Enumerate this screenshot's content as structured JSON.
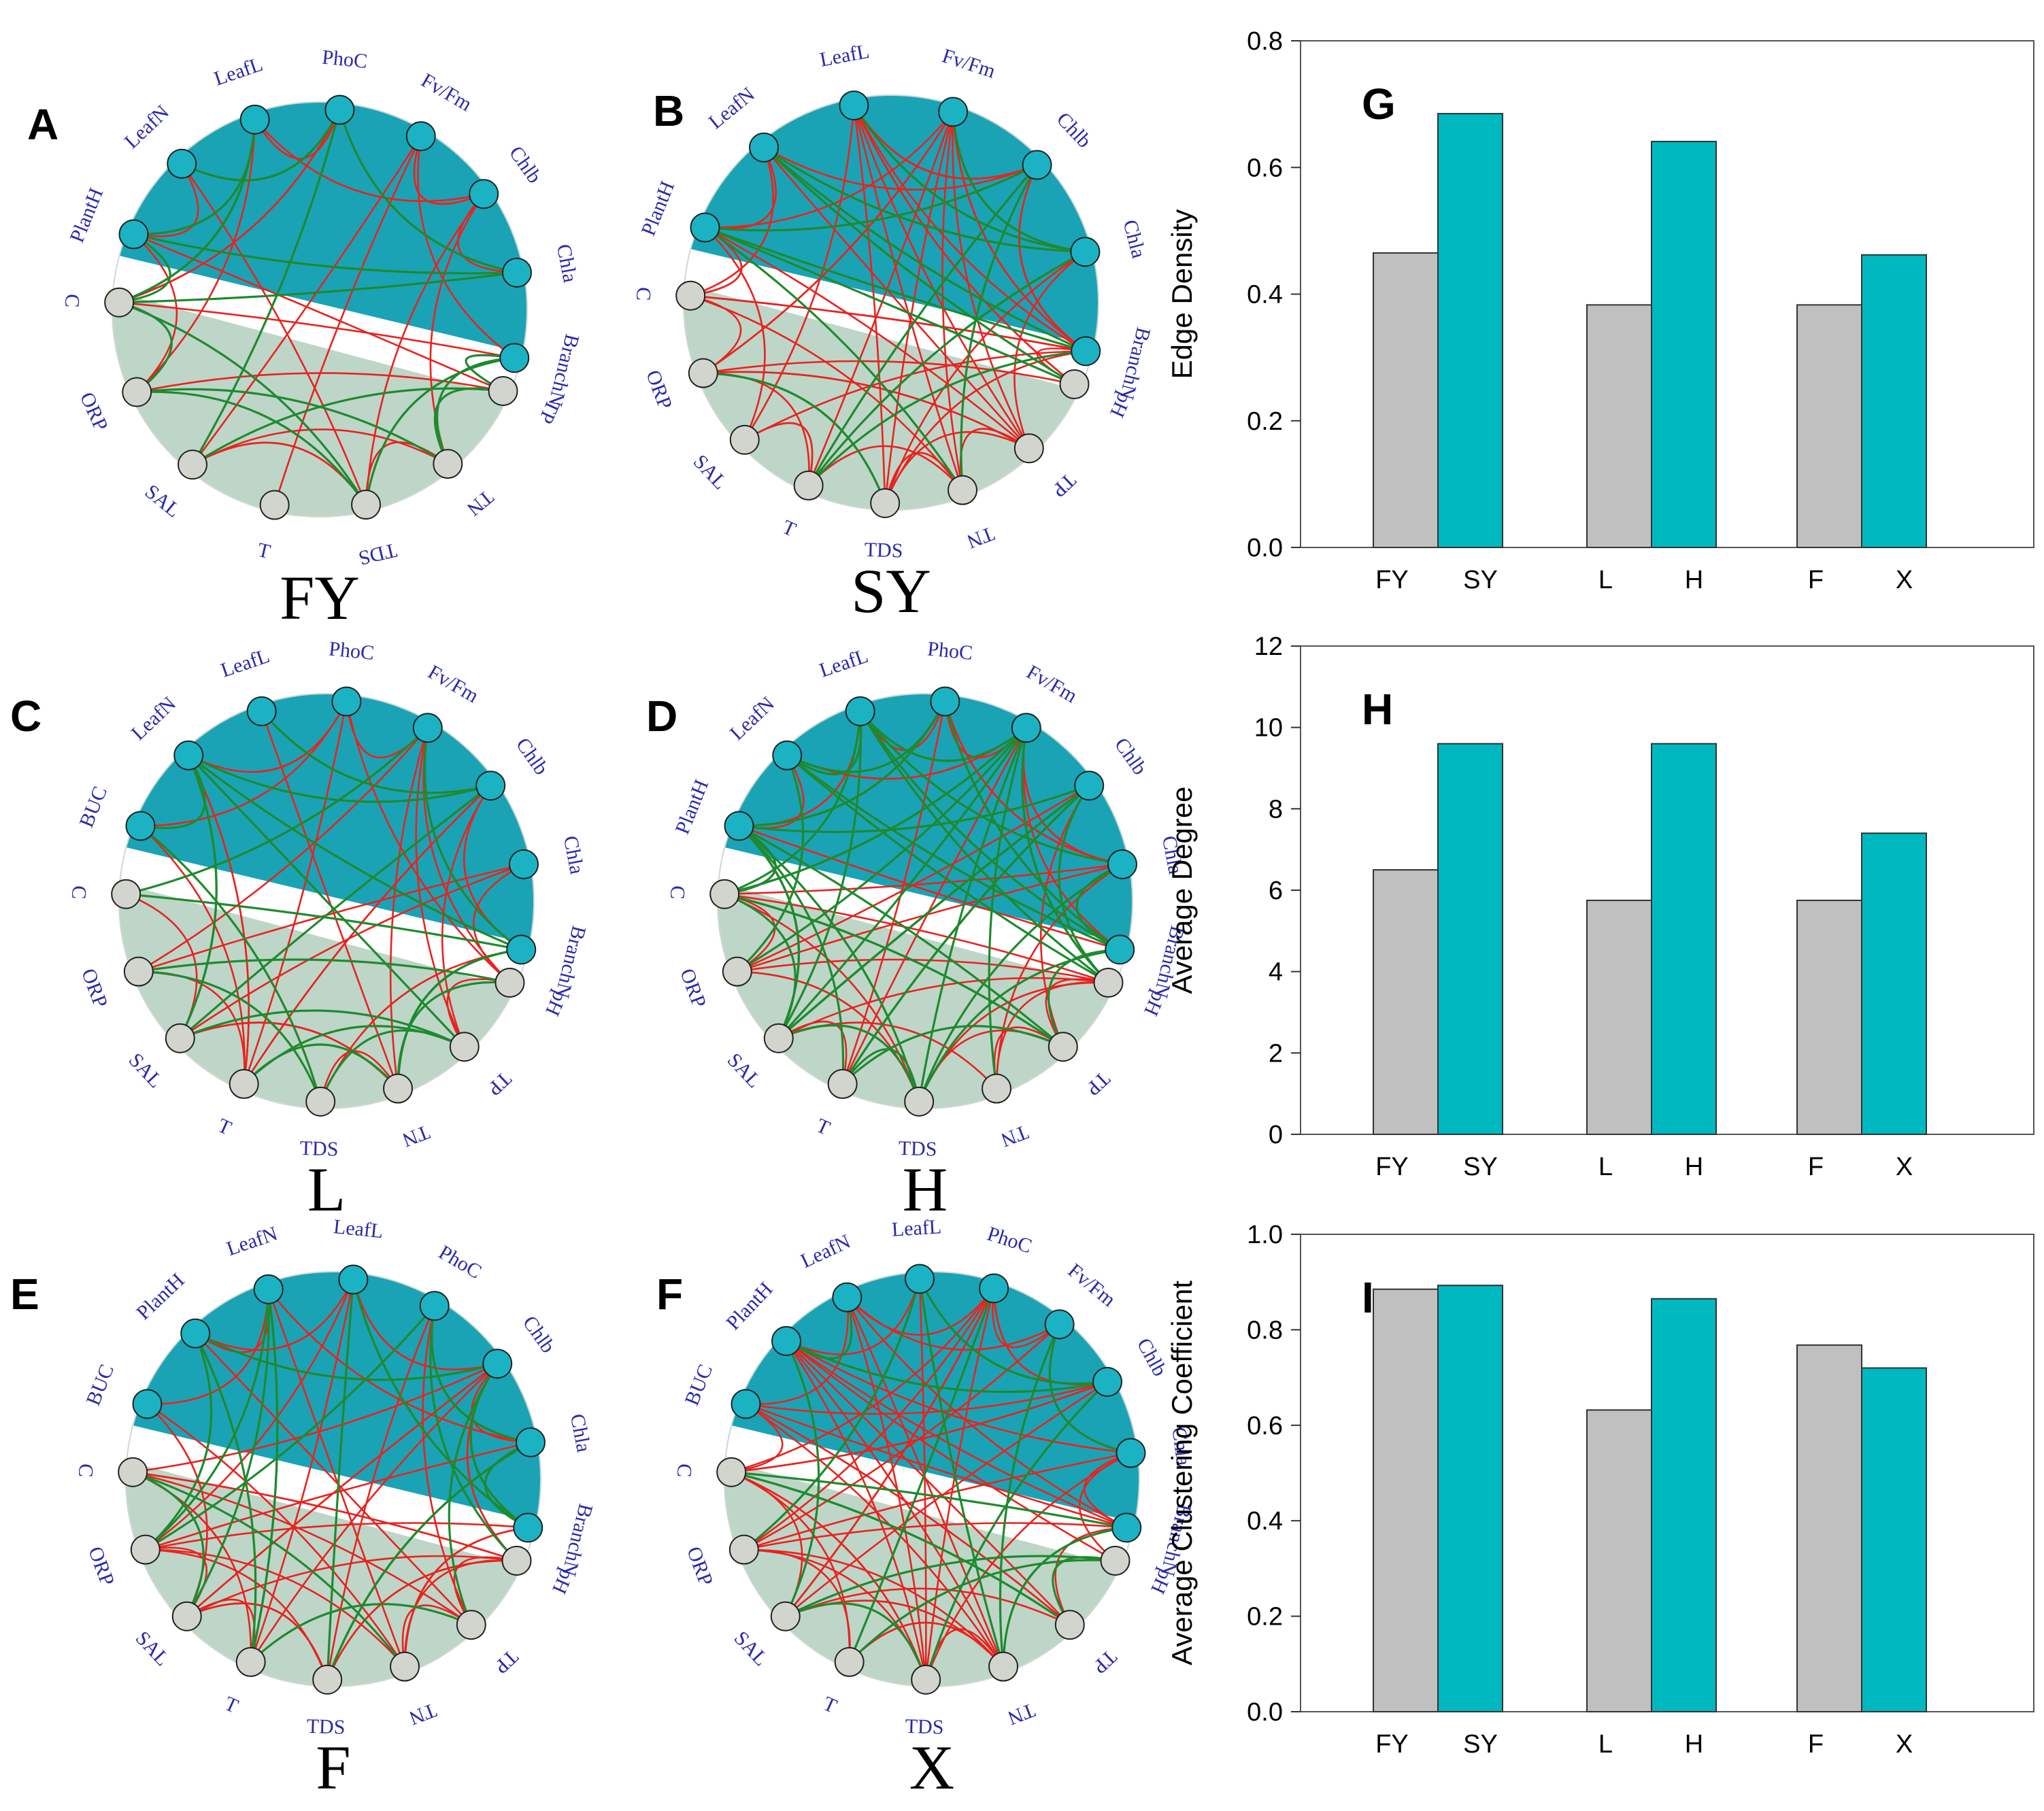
{
  "colors": {
    "plant": "#1aa3b5",
    "water": "#bdd6c8",
    "node_plant": "#1bb3c3",
    "node_water": "#d2d5cd",
    "positive": "#e8231f",
    "negative": "#1f8a2e",
    "bar_gray": "#c0c0c0",
    "bar_teal": "#00b8bf",
    "label": "#2a2aa8"
  },
  "networks": [
    {
      "id": "A",
      "letter": "A",
      "caption": "FY",
      "plant_labels": [
        "PlantH",
        "LeafN",
        "LeafL",
        "PhoC",
        "Fv/Fm",
        "Chlb",
        "Chla",
        "BranchN"
      ],
      "water_labels": [
        "TP",
        "TN",
        "TDS",
        "T",
        "SAL",
        "ORP",
        "C"
      ],
      "seed": 3,
      "red": 26,
      "green": 18
    },
    {
      "id": "B",
      "letter": "B",
      "caption": "SY",
      "plant_labels": [
        "PlantH",
        "LeafN",
        "LeafL",
        "Fv/Fm",
        "Chlb",
        "Chla",
        "BranchN"
      ],
      "water_labels": [
        "pH",
        "TP",
        "TN",
        "TDS",
        "T",
        "SAL",
        "ORP",
        "C"
      ],
      "seed": 7,
      "red": 60,
      "green": 14
    },
    {
      "id": "C",
      "letter": "C",
      "caption": "L",
      "plant_labels": [
        "BUC",
        "LeafN",
        "LeafL",
        "PhoC",
        "Fv/Fm",
        "Chlb",
        "Chla",
        "BranchN"
      ],
      "water_labels": [
        "pH",
        "TP",
        "TN",
        "TDS",
        "T",
        "SAL",
        "ORP",
        "C"
      ],
      "seed": 11,
      "red": 30,
      "green": 22
    },
    {
      "id": "D",
      "letter": "D",
      "caption": "H",
      "plant_labels": [
        "PlantH",
        "LeafN",
        "LeafL",
        "PhoC",
        "Fv/Fm",
        "Chlb",
        "Chla",
        "BranchN"
      ],
      "water_labels": [
        "pH",
        "TP",
        "TN",
        "TDS",
        "T",
        "SAL",
        "ORP",
        "C"
      ],
      "seed": 19,
      "red": 42,
      "green": 50
    },
    {
      "id": "E",
      "letter": "E",
      "caption": "F",
      "plant_labels": [
        "BUC",
        "PlantH",
        "LeafN",
        "LeafL",
        "PhoC",
        "Chlb",
        "Chla",
        "BranchN"
      ],
      "water_labels": [
        "pH",
        "TP",
        "TN",
        "TDS",
        "T",
        "SAL",
        "ORP",
        "C"
      ],
      "seed": 23,
      "red": 44,
      "green": 20
    },
    {
      "id": "F",
      "letter": "F",
      "caption": "X",
      "plant_labels": [
        "BUC",
        "PlantH",
        "LeafN",
        "LeafL",
        "PhoC",
        "Fv/Fm",
        "Chlb",
        "Chla",
        "BranchN"
      ],
      "water_labels": [
        "pH",
        "TP",
        "TN",
        "TDS",
        "T",
        "SAL",
        "ORP",
        "C"
      ],
      "seed": 29,
      "red": 58,
      "green": 18
    }
  ],
  "chart_data": [
    {
      "type": "bar",
      "letter": "G",
      "ylabel": "Edge Density",
      "ylim": [
        0,
        0.8
      ],
      "yticks": [
        "0.0",
        "0.2",
        "0.4",
        "0.6",
        "0.8"
      ],
      "ytick_values": [
        0,
        0.2,
        0.4,
        0.6,
        0.8
      ],
      "categories": [
        "FY",
        "SY",
        "L",
        "H",
        "F",
        "X"
      ],
      "values": [
        0.465,
        0.685,
        0.383,
        0.641,
        0.383,
        0.462
      ]
    },
    {
      "type": "bar",
      "letter": "H",
      "ylabel": "Average Degree",
      "ylim": [
        0,
        12
      ],
      "yticks": [
        "0",
        "2",
        "4",
        "6",
        "8",
        "10",
        "12"
      ],
      "ytick_values": [
        0,
        2,
        4,
        6,
        8,
        10,
        12
      ],
      "categories": [
        "FY",
        "SY",
        "L",
        "H",
        "F",
        "X"
      ],
      "values": [
        6.5,
        9.6,
        5.75,
        9.6,
        5.75,
        7.4
      ]
    },
    {
      "type": "bar",
      "letter": "I",
      "ylabel": "Average Clustering Coefficient",
      "ylim": [
        0,
        1.0
      ],
      "yticks": [
        "0.0",
        "0.2",
        "0.4",
        "0.6",
        "0.8",
        "1.0"
      ],
      "ytick_values": [
        0,
        0.2,
        0.4,
        0.6,
        0.8,
        1.0
      ],
      "categories": [
        "FY",
        "SY",
        "L",
        "H",
        "F",
        "X"
      ],
      "values": [
        0.885,
        0.893,
        0.632,
        0.865,
        0.768,
        0.72
      ]
    }
  ]
}
